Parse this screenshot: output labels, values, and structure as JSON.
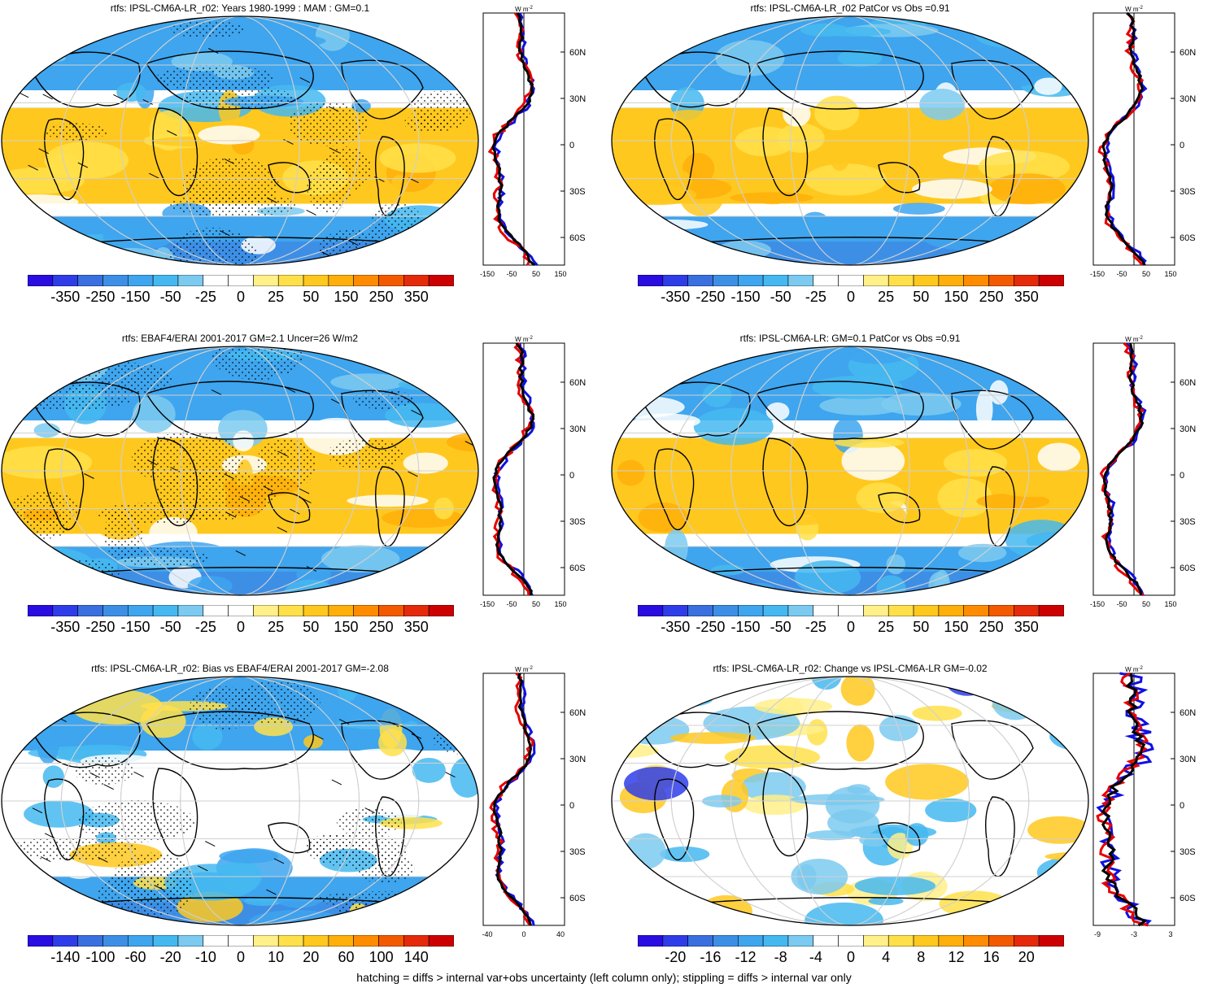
{
  "panels": [
    {
      "id": "p1",
      "title": "rtfs: IPSL-CM6A-LR_r02: Years 1980-1999 : MAM : GM=0.1",
      "box": "top-left",
      "colorbar_labels": [
        "-350",
        "-250",
        "-150",
        "-50",
        "-25",
        "0",
        "25",
        "50",
        "150",
        "250",
        "350"
      ],
      "profile_xticks": [
        "-150",
        "-50",
        "50",
        "150"
      ],
      "profile_yticks": [
        "60N",
        "30N",
        "0",
        "30S",
        "60S"
      ],
      "hatched": true
    },
    {
      "id": "p2",
      "title": "rtfs: IPSL-CM6A-LR_r02 PatCor vs Obs =0.91",
      "box": "top-right",
      "colorbar_labels": [
        "-350",
        "-250",
        "-150",
        "-50",
        "-25",
        "0",
        "25",
        "50",
        "150",
        "250",
        "350"
      ],
      "profile_xticks": [
        "-150",
        "-50",
        "50",
        "150"
      ],
      "profile_yticks": [
        "60N",
        "30N",
        "0",
        "30S",
        "60S"
      ],
      "hatched": false
    },
    {
      "id": "p3",
      "title": "rtfs: EBAF4/ERAI 2001-2017 GM=2.1 Uncer=26 W/m2",
      "box": "middle-left",
      "colorbar_labels": [
        "-350",
        "-250",
        "-150",
        "-50",
        "-25",
        "0",
        "25",
        "50",
        "150",
        "250",
        "350"
      ],
      "profile_xticks": [
        "-150",
        "-50",
        "50",
        "150"
      ],
      "profile_yticks": [
        "60N",
        "30N",
        "0",
        "30S",
        "60S"
      ],
      "hatched": true
    },
    {
      "id": "p4",
      "title": "rtfs: IPSL-CM6A-LR: GM=0.1 PatCor vs Obs =0.91",
      "box": "middle-right",
      "colorbar_labels": [
        "-350",
        "-250",
        "-150",
        "-50",
        "-25",
        "0",
        "25",
        "50",
        "150",
        "250",
        "350"
      ],
      "profile_xticks": [
        "-150",
        "-50",
        "50",
        "150"
      ],
      "profile_yticks": [
        "60N",
        "30N",
        "0",
        "30S",
        "60S"
      ],
      "hatched": false
    },
    {
      "id": "p5",
      "title": "rtfs: IPSL-CM6A-LR_r02: Bias vs EBAF4/ERAI 2001-2017 GM=-2.08",
      "box": "bottom-left",
      "colorbar_labels": [
        "-140",
        "-100",
        "-60",
        "-20",
        "-10",
        "0",
        "10",
        "20",
        "60",
        "100",
        "140"
      ],
      "profile_xticks": [
        "-40",
        "0",
        "40"
      ],
      "profile_yticks": [
        "60N",
        "30N",
        "0",
        "30S",
        "60S"
      ],
      "hatched": true
    },
    {
      "id": "p6",
      "title": "rtfs: IPSL-CM6A-LR_r02: Change vs IPSL-CM6A-LR GM=-0.02",
      "box": "bottom-right",
      "colorbar_labels": [
        "-20",
        "-16",
        "-12",
        "-8",
        "-4",
        "0",
        "4",
        "8",
        "12",
        "16",
        "20"
      ],
      "profile_xticks": [
        "-9",
        "-3",
        "3"
      ],
      "profile_yticks": [
        "60N",
        "30N",
        "0",
        "30S",
        "60S"
      ],
      "hatched": false
    }
  ],
  "profile_unit": "W m",
  "profile_unit_exp": "-2",
  "palette": [
    "#2a0de0",
    "#2f3de8",
    "#3a6fe0",
    "#3d8fe6",
    "#3ea5ee",
    "#45b8f0",
    "#7ccaf0",
    "#ffffff",
    "#ffffff",
    "#fff08a",
    "#ffe04a",
    "#ffc81e",
    "#ffaf0a",
    "#ff8c00",
    "#f35a00",
    "#e42a0a",
    "#cc0000"
  ],
  "line_colors": {
    "model": "#e60000",
    "obs": "#1010e0",
    "ref": "#000000"
  },
  "footer": "hatching = diffs > internal var+obs uncertainty (left column only); stippling = diffs > internal var only"
}
